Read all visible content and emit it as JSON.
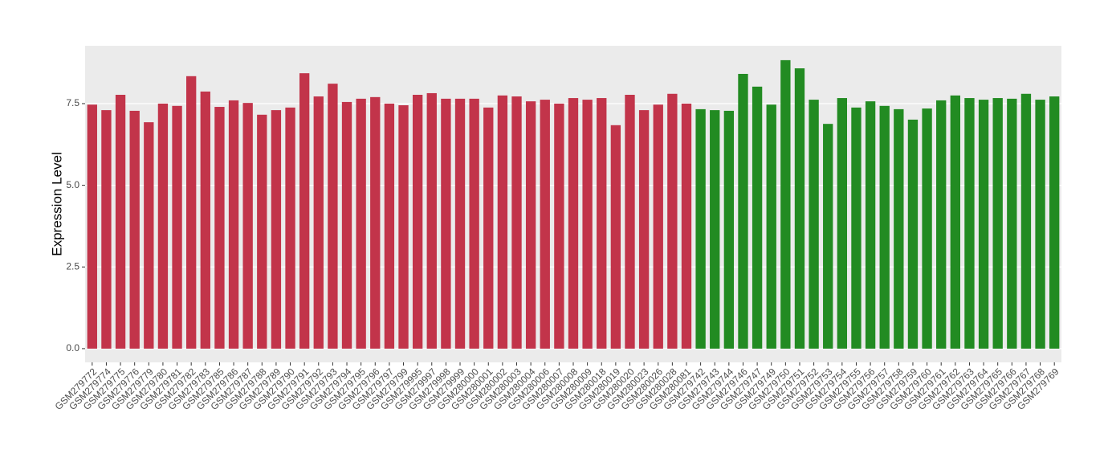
{
  "chart_data": {
    "type": "bar",
    "y_label": "Expression Level",
    "categories": [
      "GSM279772",
      "GSM279774",
      "GSM279775",
      "GSM279776",
      "GSM279779",
      "GSM279780",
      "GSM279781",
      "GSM279782",
      "GSM279783",
      "GSM279785",
      "GSM279786",
      "GSM279787",
      "GSM279788",
      "GSM279789",
      "GSM279790",
      "GSM279791",
      "GSM279792",
      "GSM279793",
      "GSM279794",
      "GSM279795",
      "GSM279796",
      "GSM279797",
      "GSM279799",
      "GSM279995",
      "GSM279997",
      "GSM279998",
      "GSM279999",
      "GSM280000",
      "GSM280001",
      "GSM280002",
      "GSM280003",
      "GSM280004",
      "GSM280006",
      "GSM280007",
      "GSM280008",
      "GSM280009",
      "GSM280018",
      "GSM280019",
      "GSM280020",
      "GSM280023",
      "GSM280026",
      "GSM280028",
      "GSM280081",
      "GSM279742",
      "GSM279743",
      "GSM279744",
      "GSM279746",
      "GSM279747",
      "GSM279749",
      "GSM279750",
      "GSM279751",
      "GSM279752",
      "GSM279753",
      "GSM279754",
      "GSM279755",
      "GSM279756",
      "GSM279757",
      "GSM279758",
      "GSM279759",
      "GSM279760",
      "GSM279761",
      "GSM279762",
      "GSM279763",
      "GSM279764",
      "GSM279765",
      "GSM279766",
      "GSM279767",
      "GSM279768",
      "GSM279769"
    ],
    "series": [
      {
        "color": "#c2344a",
        "values": [
          7.47,
          7.3,
          7.77,
          7.28,
          6.93,
          7.5,
          7.43,
          8.34,
          7.87,
          7.4,
          7.6,
          7.52,
          7.16,
          7.3,
          7.38,
          8.43,
          7.72,
          8.11,
          7.55,
          7.65,
          7.7,
          7.5,
          7.45,
          7.77,
          7.82,
          7.65,
          7.65,
          7.65,
          7.38,
          7.75,
          7.72,
          7.57,
          7.62,
          7.5,
          7.67,
          7.62,
          7.67,
          6.84,
          7.77,
          7.3,
          7.47,
          7.8,
          7.5,
          null,
          null,
          null,
          null,
          null,
          null,
          null,
          null,
          null,
          null,
          null,
          null,
          null,
          null,
          null,
          null,
          null,
          null,
          null,
          null,
          null,
          null,
          null,
          null,
          null,
          null
        ]
      },
      {
        "color": "#228b22",
        "values": [
          null,
          null,
          null,
          null,
          null,
          null,
          null,
          null,
          null,
          null,
          null,
          null,
          null,
          null,
          null,
          null,
          null,
          null,
          null,
          null,
          null,
          null,
          null,
          null,
          null,
          null,
          null,
          null,
          null,
          null,
          null,
          null,
          null,
          null,
          null,
          null,
          null,
          null,
          null,
          null,
          null,
          null,
          null,
          7.33,
          7.3,
          7.28,
          8.41,
          8.02,
          7.47,
          8.83,
          8.58,
          7.62,
          6.88,
          7.67,
          7.38,
          7.57,
          7.43,
          7.33,
          7.01,
          7.35,
          7.6,
          7.75,
          7.67,
          7.62,
          7.67,
          7.65,
          7.8,
          7.62,
          7.72
        ]
      }
    ],
    "ylim": [
      -0.42,
      9.27
    ],
    "yticks": [
      {
        "value": 0,
        "label": "0.0"
      },
      2.5,
      {
        "value": 5,
        "label": "5.0"
      },
      7.5
    ],
    "grid": true
  }
}
